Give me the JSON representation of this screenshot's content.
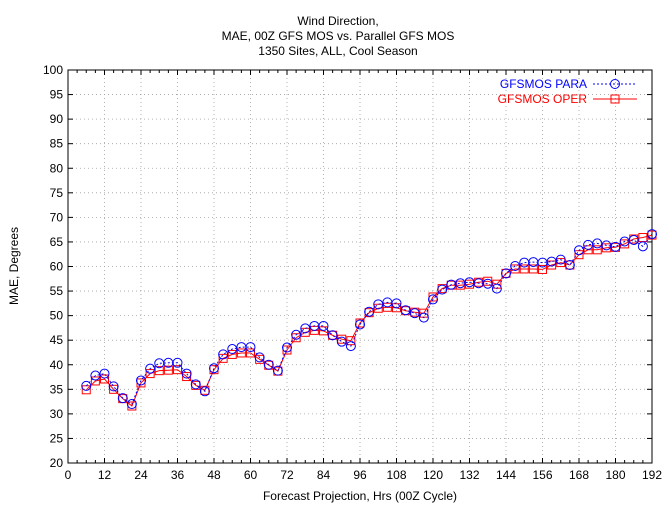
{
  "chart_data": {
    "type": "line",
    "title": [
      "Wind Direction,",
      "MAE, 00Z GFS MOS vs. Parallel GFS MOS",
      "1350 Sites, ALL, Cool Season"
    ],
    "xlabel": "Forecast Projection, Hrs (00Z Cycle)",
    "ylabel": "MAE, Degrees",
    "xlim": [
      0,
      192
    ],
    "ylim": [
      20,
      100
    ],
    "xticks": [
      0,
      12,
      24,
      36,
      48,
      60,
      72,
      84,
      96,
      108,
      120,
      132,
      144,
      156,
      168,
      180,
      192
    ],
    "yticks": [
      20,
      25,
      30,
      35,
      40,
      45,
      50,
      55,
      60,
      65,
      70,
      75,
      80,
      85,
      90,
      95,
      100
    ],
    "grid": true,
    "legend_position": "top-right",
    "x": [
      6,
      9,
      12,
      15,
      18,
      21,
      24,
      27,
      30,
      33,
      36,
      39,
      42,
      45,
      48,
      51,
      54,
      57,
      60,
      63,
      66,
      69,
      72,
      75,
      78,
      81,
      84,
      87,
      90,
      93,
      96,
      99,
      102,
      105,
      108,
      111,
      114,
      117,
      120,
      123,
      126,
      129,
      132,
      135,
      138,
      141,
      144,
      147,
      150,
      153,
      156,
      159,
      162,
      165,
      168,
      171,
      174,
      177,
      180,
      183,
      186,
      189,
      192
    ],
    "series": [
      {
        "name": "GFSMOS PARA",
        "color": "#0000ff",
        "marker": "circle",
        "line_style": "dotted",
        "values": [
          35.7,
          37.8,
          38.2,
          35.6,
          33.2,
          32.0,
          36.8,
          39.2,
          40.3,
          40.4,
          40.4,
          38.2,
          36.0,
          34.6,
          39.3,
          42.1,
          43.2,
          43.6,
          43.6,
          41.5,
          40.0,
          38.8,
          43.5,
          46.1,
          47.4,
          47.9,
          47.9,
          46.0,
          44.7,
          43.8,
          48.2,
          50.8,
          52.3,
          52.7,
          52.5,
          51.1,
          50.5,
          49.6,
          53.3,
          55.3,
          56.3,
          56.6,
          56.8,
          56.6,
          56.5,
          55.5,
          58.6,
          60.1,
          60.8,
          60.9,
          60.8,
          61.0,
          61.4,
          60.3,
          63.3,
          64.4,
          64.7,
          64.3,
          64.0,
          65.1,
          65.4,
          64.1,
          66.6
        ]
      },
      {
        "name": "GFSMOS OPER",
        "color": "#ff0000",
        "marker": "square",
        "line_style": "solid",
        "values": [
          34.9,
          36.7,
          37.1,
          35.0,
          33.1,
          31.6,
          36.3,
          38.2,
          38.8,
          38.9,
          39.0,
          37.6,
          35.8,
          34.8,
          39.0,
          41.3,
          42.1,
          42.4,
          42.4,
          41.1,
          39.9,
          38.7,
          43.0,
          45.5,
          46.6,
          47.0,
          46.9,
          46.0,
          45.2,
          44.9,
          48.5,
          50.6,
          51.5,
          51.7,
          51.6,
          51.0,
          50.7,
          50.5,
          53.8,
          55.5,
          56.2,
          56.2,
          56.4,
          56.8,
          57.0,
          56.4,
          58.6,
          59.5,
          59.5,
          59.5,
          59.4,
          60.3,
          60.8,
          60.3,
          62.4,
          63.4,
          63.4,
          63.8,
          63.9,
          64.6,
          65.6,
          65.9,
          66.4
        ]
      }
    ]
  }
}
